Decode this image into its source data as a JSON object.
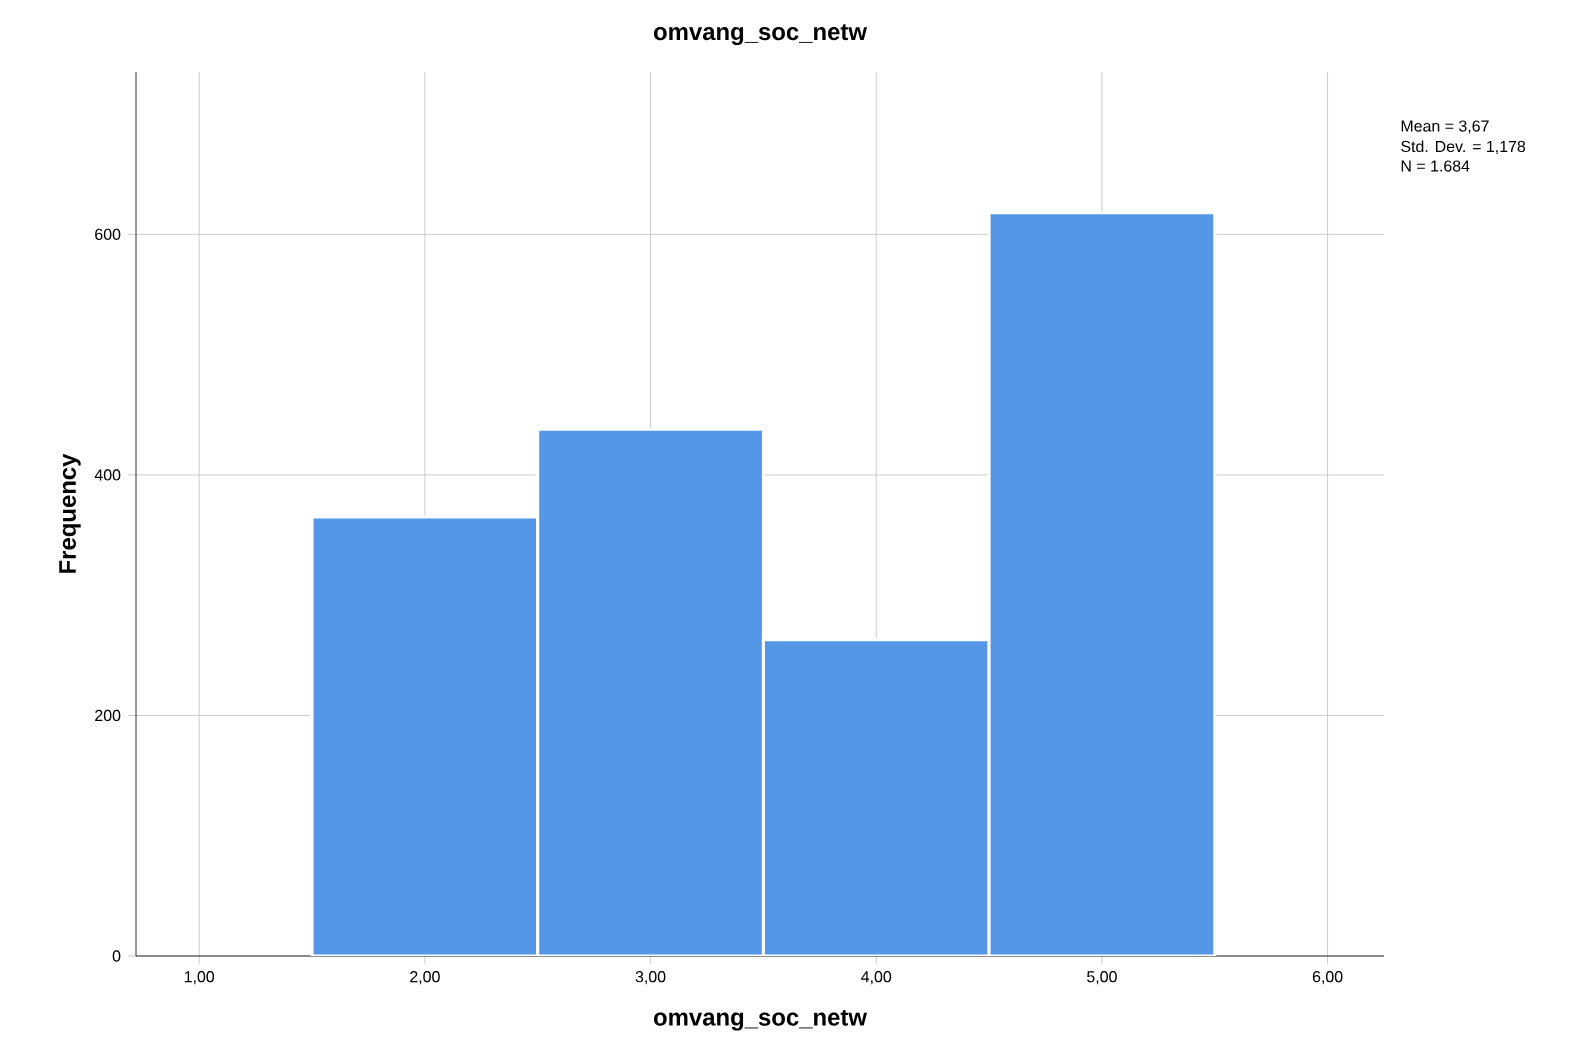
{
  "chart_data": {
    "type": "histogram",
    "title": "omvang_soc_netw",
    "xlabel": "omvang_soc_netw",
    "ylabel": "Frequency",
    "bins": [
      1.5,
      2.5,
      3.5,
      4.5,
      5.5
    ],
    "values": [
      365,
      438,
      263,
      618
    ],
    "color": "#5596e6",
    "xlim": [
      0.72,
      6.25
    ],
    "ylim": [
      0,
      735
    ],
    "xticks": [
      {
        "value": 1,
        "label": "1,00"
      },
      {
        "value": 2,
        "label": "2,00"
      },
      {
        "value": 3,
        "label": "3,00"
      },
      {
        "value": 4,
        "label": "4,00"
      },
      {
        "value": 5,
        "label": "5,00"
      },
      {
        "value": 6,
        "label": "6,00"
      }
    ],
    "yticks": [
      0,
      200,
      400,
      600
    ],
    "grid": true,
    "annotations": [
      "Mean = 3,67",
      "Std. Dev. = 1,178",
      "N = 1.684"
    ]
  }
}
